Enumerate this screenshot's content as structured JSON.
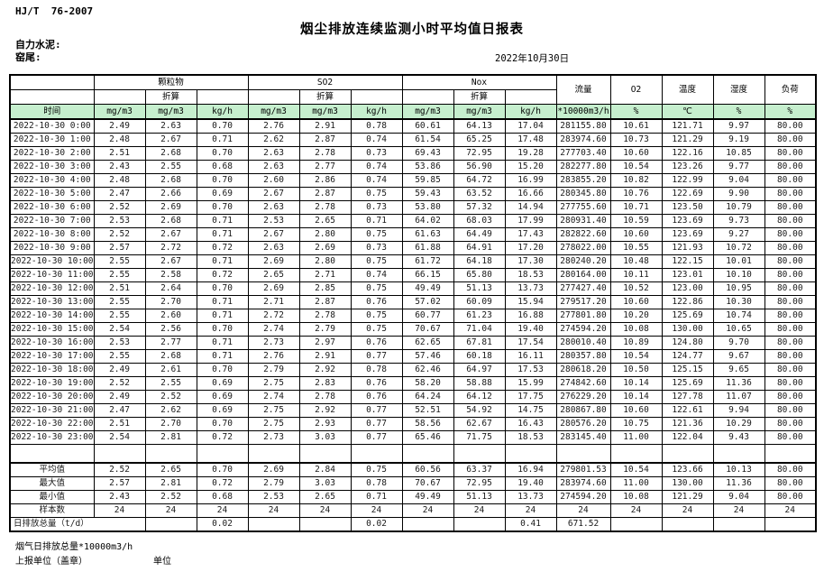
{
  "meta": {
    "standard": "HJ/T  76-2007",
    "title": "烟尘排放连续监测小时平均值日报表",
    "company": "自力水泥:",
    "station": "窑尾:",
    "date": "2022年10月30日"
  },
  "table": {
    "time_label": "时间",
    "converted_label": "折算",
    "groups": [
      {
        "label": "颗粒物",
        "units": [
          "mg/m3",
          "mg/m3",
          "kg/h"
        ]
      },
      {
        "label": "SO2",
        "units": [
          "mg/m3",
          "mg/m3",
          "kg/h"
        ]
      },
      {
        "label": "Nox",
        "units": [
          "mg/m3",
          "mg/m3",
          "kg/h"
        ]
      }
    ],
    "scalars": [
      {
        "label": "流量",
        "unit": "*10000m3/h"
      },
      {
        "label": "O2",
        "unit": "%"
      },
      {
        "label": "温度",
        "unit": "℃"
      },
      {
        "label": "湿度",
        "unit": "%"
      },
      {
        "label": "负荷",
        "unit": "%"
      }
    ],
    "rows": [
      {
        "time": "2022-10-30 0:00",
        "values": [
          "2.49",
          "2.63",
          "0.70",
          "2.76",
          "2.91",
          "0.78",
          "60.61",
          "64.13",
          "17.04",
          "281155.80",
          "10.61",
          "121.71",
          "9.97",
          "80.00"
        ]
      },
      {
        "time": "2022-10-30 1:00",
        "values": [
          "2.48",
          "2.67",
          "0.71",
          "2.62",
          "2.87",
          "0.74",
          "61.54",
          "65.25",
          "17.48",
          "283974.60",
          "10.73",
          "121.29",
          "9.19",
          "80.00"
        ]
      },
      {
        "time": "2022-10-30 2:00",
        "values": [
          "2.51",
          "2.68",
          "0.70",
          "2.63",
          "2.78",
          "0.73",
          "69.43",
          "72.95",
          "19.28",
          "277703.40",
          "10.60",
          "122.16",
          "10.85",
          "80.00"
        ]
      },
      {
        "time": "2022-10-30 3:00",
        "values": [
          "2.43",
          "2.55",
          "0.68",
          "2.63",
          "2.77",
          "0.74",
          "53.86",
          "56.90",
          "15.20",
          "282277.80",
          "10.54",
          "123.26",
          "9.77",
          "80.00"
        ]
      },
      {
        "time": "2022-10-30 4:00",
        "values": [
          "2.48",
          "2.68",
          "0.70",
          "2.60",
          "2.86",
          "0.74",
          "59.85",
          "64.72",
          "16.99",
          "283855.20",
          "10.82",
          "122.99",
          "9.04",
          "80.00"
        ]
      },
      {
        "time": "2022-10-30 5:00",
        "values": [
          "2.47",
          "2.66",
          "0.69",
          "2.67",
          "2.87",
          "0.75",
          "59.43",
          "63.52",
          "16.66",
          "280345.80",
          "10.76",
          "122.69",
          "9.90",
          "80.00"
        ]
      },
      {
        "time": "2022-10-30 6:00",
        "values": [
          "2.52",
          "2.69",
          "0.70",
          "2.63",
          "2.78",
          "0.73",
          "53.80",
          "57.32",
          "14.94",
          "277755.60",
          "10.71",
          "123.50",
          "10.79",
          "80.00"
        ]
      },
      {
        "time": "2022-10-30 7:00",
        "values": [
          "2.53",
          "2.68",
          "0.71",
          "2.53",
          "2.65",
          "0.71",
          "64.02",
          "68.03",
          "17.99",
          "280931.40",
          "10.59",
          "123.69",
          "9.73",
          "80.00"
        ]
      },
      {
        "time": "2022-10-30 8:00",
        "values": [
          "2.52",
          "2.67",
          "0.71",
          "2.67",
          "2.80",
          "0.75",
          "61.63",
          "64.49",
          "17.43",
          "282822.60",
          "10.60",
          "123.69",
          "9.27",
          "80.00"
        ]
      },
      {
        "time": "2022-10-30 9:00",
        "values": [
          "2.57",
          "2.72",
          "0.72",
          "2.63",
          "2.69",
          "0.73",
          "61.88",
          "64.91",
          "17.20",
          "278022.00",
          "10.55",
          "121.93",
          "10.72",
          "80.00"
        ]
      },
      {
        "time": "2022-10-30 10:00",
        "values": [
          "2.55",
          "2.67",
          "0.71",
          "2.69",
          "2.80",
          "0.75",
          "61.72",
          "64.18",
          "17.30",
          "280240.20",
          "10.48",
          "122.15",
          "10.01",
          "80.00"
        ]
      },
      {
        "time": "2022-10-30 11:00",
        "values": [
          "2.55",
          "2.58",
          "0.72",
          "2.65",
          "2.71",
          "0.74",
          "66.15",
          "65.80",
          "18.53",
          "280164.00",
          "10.11",
          "123.01",
          "10.10",
          "80.00"
        ]
      },
      {
        "time": "2022-10-30 12:00",
        "values": [
          "2.51",
          "2.64",
          "0.70",
          "2.69",
          "2.85",
          "0.75",
          "49.49",
          "51.13",
          "13.73",
          "277427.40",
          "10.52",
          "123.00",
          "10.95",
          "80.00"
        ]
      },
      {
        "time": "2022-10-30 13:00",
        "values": [
          "2.55",
          "2.70",
          "0.71",
          "2.71",
          "2.87",
          "0.76",
          "57.02",
          "60.09",
          "15.94",
          "279517.20",
          "10.60",
          "122.86",
          "10.30",
          "80.00"
        ]
      },
      {
        "time": "2022-10-30 14:00",
        "values": [
          "2.55",
          "2.60",
          "0.71",
          "2.72",
          "2.78",
          "0.75",
          "60.77",
          "61.23",
          "16.88",
          "277801.80",
          "10.20",
          "125.69",
          "10.74",
          "80.00"
        ]
      },
      {
        "time": "2022-10-30 15:00",
        "values": [
          "2.54",
          "2.56",
          "0.70",
          "2.74",
          "2.79",
          "0.75",
          "70.67",
          "71.04",
          "19.40",
          "274594.20",
          "10.08",
          "130.00",
          "10.65",
          "80.00"
        ]
      },
      {
        "time": "2022-10-30 16:00",
        "values": [
          "2.53",
          "2.77",
          "0.71",
          "2.73",
          "2.97",
          "0.76",
          "62.65",
          "67.81",
          "17.54",
          "280010.40",
          "10.89",
          "124.80",
          "9.70",
          "80.00"
        ]
      },
      {
        "time": "2022-10-30 17:00",
        "values": [
          "2.55",
          "2.68",
          "0.71",
          "2.76",
          "2.91",
          "0.77",
          "57.46",
          "60.18",
          "16.11",
          "280357.80",
          "10.54",
          "124.77",
          "9.67",
          "80.00"
        ]
      },
      {
        "time": "2022-10-30 18:00",
        "values": [
          "2.49",
          "2.61",
          "0.70",
          "2.79",
          "2.92",
          "0.78",
          "62.46",
          "64.97",
          "17.53",
          "280618.20",
          "10.50",
          "125.15",
          "9.65",
          "80.00"
        ]
      },
      {
        "time": "2022-10-30 19:00",
        "values": [
          "2.52",
          "2.55",
          "0.69",
          "2.75",
          "2.83",
          "0.76",
          "58.20",
          "58.88",
          "15.99",
          "274842.60",
          "10.14",
          "125.69",
          "11.36",
          "80.00"
        ]
      },
      {
        "time": "2022-10-30 20:00",
        "values": [
          "2.49",
          "2.52",
          "0.69",
          "2.74",
          "2.78",
          "0.76",
          "64.24",
          "64.12",
          "17.75",
          "276229.20",
          "10.14",
          "127.78",
          "11.07",
          "80.00"
        ]
      },
      {
        "time": "2022-10-30 21:00",
        "values": [
          "2.47",
          "2.62",
          "0.69",
          "2.75",
          "2.92",
          "0.77",
          "52.51",
          "54.92",
          "14.75",
          "280867.80",
          "10.60",
          "122.61",
          "9.94",
          "80.00"
        ]
      },
      {
        "time": "2022-10-30 22:00",
        "values": [
          "2.51",
          "2.70",
          "0.70",
          "2.75",
          "2.93",
          "0.77",
          "58.56",
          "62.67",
          "16.43",
          "280576.20",
          "10.75",
          "121.36",
          "10.29",
          "80.00"
        ]
      },
      {
        "time": "2022-10-30 23:00",
        "values": [
          "2.54",
          "2.81",
          "0.72",
          "2.73",
          "3.03",
          "0.77",
          "65.46",
          "71.75",
          "18.53",
          "283145.40",
          "11.00",
          "122.04",
          "9.43",
          "80.00"
        ]
      }
    ],
    "summary": [
      {
        "label": "平均值",
        "colspan": 1,
        "values": [
          "2.52",
          "2.65",
          "0.70",
          "2.69",
          "2.84",
          "0.75",
          "60.56",
          "63.37",
          "16.94",
          "279801.53",
          "10.54",
          "123.66",
          "10.13",
          "80.00"
        ]
      },
      {
        "label": "最大值",
        "colspan": 1,
        "values": [
          "2.57",
          "2.81",
          "0.72",
          "2.79",
          "3.03",
          "0.78",
          "70.67",
          "72.95",
          "19.40",
          "283974.60",
          "11.00",
          "130.00",
          "11.36",
          "80.00"
        ]
      },
      {
        "label": "最小值",
        "colspan": 1,
        "values": [
          "2.43",
          "2.52",
          "0.68",
          "2.53",
          "2.65",
          "0.71",
          "49.49",
          "51.13",
          "13.73",
          "274594.20",
          "10.08",
          "121.29",
          "9.04",
          "80.00"
        ]
      },
      {
        "label": "样本数",
        "colspan": 1,
        "values": [
          "24",
          "24",
          "24",
          "24",
          "24",
          "24",
          "24",
          "24",
          "24",
          "24",
          "24",
          "24",
          "24",
          "24"
        ]
      },
      {
        "label": "日排放总量（t/d）",
        "colspan": 2,
        "values": [
          "",
          "0.02",
          "",
          "",
          "0.02",
          "",
          "",
          "0.41",
          "671.52",
          "",
          "",
          "",
          ""
        ]
      }
    ]
  },
  "footer": {
    "flow_total_label": "烟气日排放总量*10000m3/h",
    "report_unit_label": "上报单位（盖章）",
    "unit_label": "单位"
  }
}
